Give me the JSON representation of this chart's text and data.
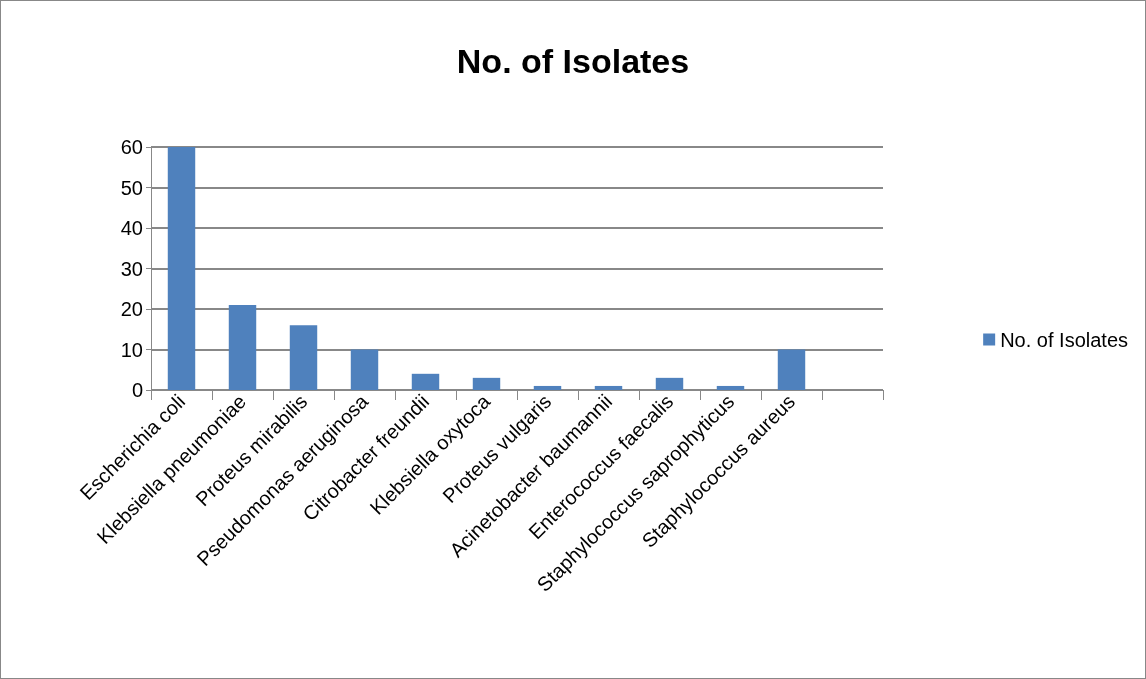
{
  "chart_data": {
    "type": "bar",
    "title": "No. of Isolates",
    "categories": [
      "Escherichia coli",
      "Klebsiella pneumoniae",
      "Proteus mirabilis",
      "Pseudomonas aeruginosa",
      "Citrobacter freundii",
      "Klebsiella oxytoca",
      "Proteus vulgaris",
      "Acinetobacter baumannii",
      "Enterococcus faecalis",
      "Staphylococcus saprophyticus",
      "Staphylococcus aureus",
      null
    ],
    "series": [
      {
        "name": "No. of Isolates",
        "color": "#4f81bd",
        "values": [
          60,
          21,
          16,
          10,
          4,
          3,
          1,
          1,
          3,
          1,
          10,
          null
        ]
      }
    ],
    "ylim": [
      0,
      60
    ],
    "yticks": [
      0,
      10,
      20,
      30,
      40,
      50,
      60
    ],
    "grid": "y",
    "legend": "right"
  }
}
